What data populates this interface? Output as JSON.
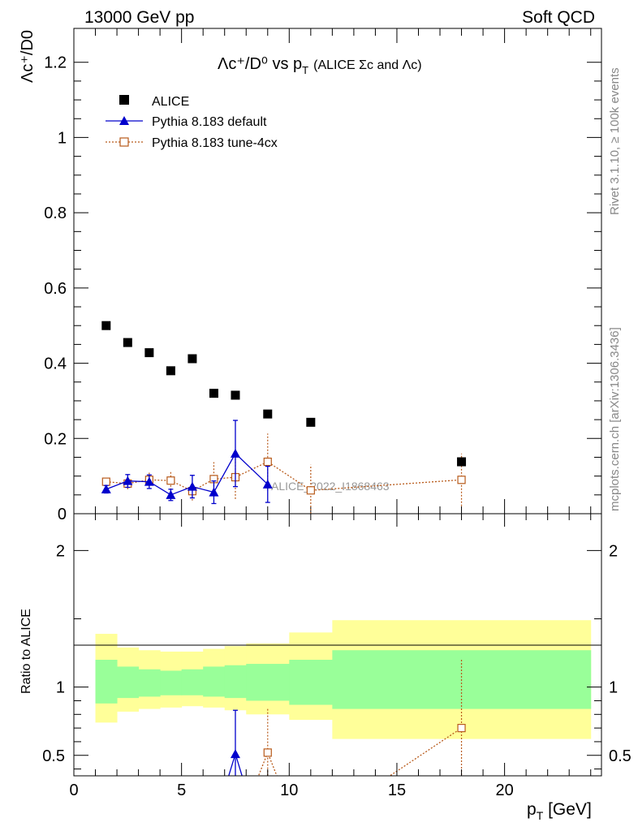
{
  "header": {
    "left": "13000 GeV pp",
    "right": "Soft QCD"
  },
  "side_text": {
    "rivet": "Rivet 3.1.10, ≥ 100k events",
    "mcplots": "mcplots.cern.ch [arXiv:1306.3436]"
  },
  "colors": {
    "alice": "#000000",
    "default": "#0000cc",
    "tune4cx": "#b85a1a",
    "band_inner": "#99ff99",
    "band_outer": "#ffff99"
  },
  "chart_data": [
    {
      "type": "scatter",
      "title": "Λc⁺/D⁰ vs p_T (ALICE Σc and Λc)",
      "title_main": "Λc⁺/D⁰ vs p",
      "title_sub": "T",
      "title_paren": "(ALICE Σc and Λc)",
      "ylabel": "Λc⁺/D0",
      "xlabel": "p_T [GeV]",
      "xlim": [
        0,
        24.5
      ],
      "ylim": [
        0,
        1.29
      ],
      "yticks": [
        0,
        0.2,
        0.4,
        0.6,
        0.8,
        1,
        1.2
      ],
      "ytick_labels": [
        "0",
        "0.2",
        "0.4",
        "0.6",
        "0.8",
        "1",
        "1.2"
      ],
      "watermark": "ALICE_2022_I1868463",
      "legend": [
        "ALICE",
        "Pythia 8.183 default",
        "Pythia 8.183 tune-4cx"
      ],
      "legend_position": "top-left",
      "series": [
        {
          "name": "ALICE",
          "x": [
            1.5,
            2.5,
            3.5,
            4.5,
            5.5,
            6.5,
            7.5,
            9,
            11,
            18
          ],
          "y": [
            0.5,
            0.455,
            0.428,
            0.38,
            0.412,
            0.32,
            0.315,
            0.265,
            0.243,
            0.138
          ]
        },
        {
          "name": "Pythia 8.183 default",
          "x": [
            1.5,
            2.5,
            3.5,
            4.5,
            5.5,
            6.5,
            7.5,
            9
          ],
          "y": [
            0.065,
            0.087,
            0.085,
            0.05,
            0.072,
            0.057,
            0.16,
            0.078
          ],
          "yerr": [
            0.01,
            0.017,
            0.018,
            0.015,
            0.03,
            0.03,
            0.088,
            0.048
          ]
        },
        {
          "name": "Pythia 8.183 tune-4cx",
          "x": [
            1.5,
            2.5,
            3.5,
            4.5,
            5.5,
            6.5,
            7.5,
            9,
            11,
            18
          ],
          "y": [
            0.085,
            0.08,
            0.09,
            0.088,
            0.06,
            0.092,
            0.097,
            0.138,
            0.062,
            0.09
          ],
          "yerr": [
            0.01,
            0.015,
            0.02,
            0.025,
            0.025,
            0.045,
            0.058,
            0.075,
            0.068,
            0.07
          ]
        }
      ]
    },
    {
      "type": "line",
      "ylabel": "Ratio to ALICE",
      "xlabel": "p_T [GeV]",
      "xlim": [
        0,
        24.5
      ],
      "ylim": [
        0.35,
        2.27
      ],
      "xticks": [
        0,
        5,
        10,
        15,
        20
      ],
      "xtick_labels": [
        "0",
        "5",
        "10",
        "15",
        "20"
      ],
      "yticks": [
        0.5,
        1,
        2
      ],
      "ytick_labels": [
        "0.5",
        "1",
        "2"
      ],
      "bands": {
        "bin_edges": [
          1,
          2,
          3,
          4,
          5,
          6,
          7,
          8,
          10,
          12,
          24
        ],
        "inner_low": [
          0.88,
          0.92,
          0.93,
          0.94,
          0.94,
          0.93,
          0.92,
          0.9,
          0.87,
          0.84
        ],
        "inner_high": [
          1.2,
          1.15,
          1.13,
          1.12,
          1.13,
          1.15,
          1.16,
          1.17,
          1.2,
          1.27
        ],
        "outer_low": [
          0.74,
          0.82,
          0.84,
          0.85,
          0.86,
          0.85,
          0.83,
          0.8,
          0.76,
          0.62
        ],
        "outer_high": [
          1.39,
          1.29,
          1.27,
          1.26,
          1.26,
          1.28,
          1.3,
          1.32,
          1.4,
          1.49
        ]
      },
      "series": [
        {
          "name": "Pythia 8.183 default",
          "x": [
            7.5
          ],
          "y": [
            0.51
          ],
          "yerr": [
            0.32
          ]
        },
        {
          "name": "Pythia 8.183 tune-4cx",
          "x": [
            9,
            18
          ],
          "y": [
            0.52,
            0.7
          ],
          "yerr": [
            0.32,
            0.5
          ]
        }
      ]
    }
  ]
}
